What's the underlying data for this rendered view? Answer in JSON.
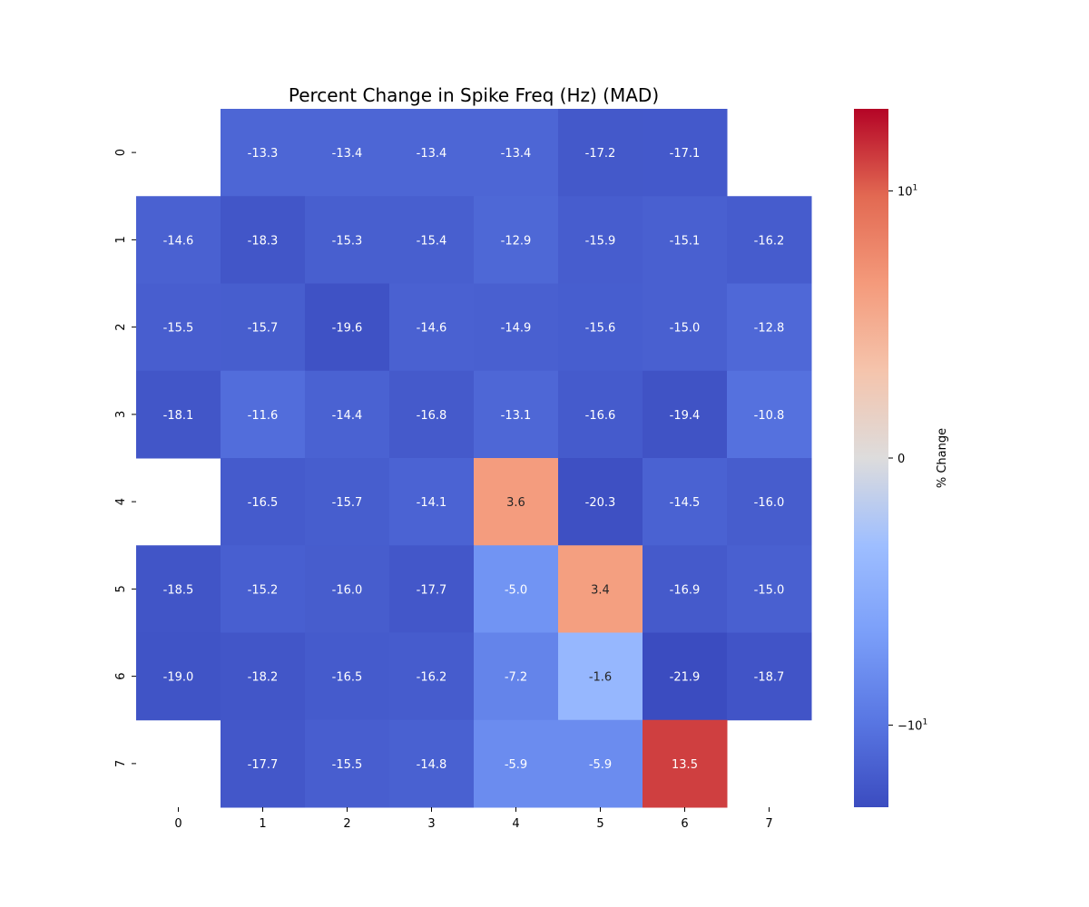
{
  "chart_data": {
    "type": "heatmap",
    "title": "Percent Change in Spike Freq (Hz) (MAD)",
    "x_ticks": [
      "0",
      "1",
      "2",
      "3",
      "4",
      "5",
      "6",
      "7"
    ],
    "y_ticks": [
      "0",
      "1",
      "2",
      "3",
      "4",
      "5",
      "6",
      "7"
    ],
    "values": [
      [
        null,
        -13.3,
        -13.4,
        -13.4,
        -13.4,
        -17.2,
        -17.1,
        null
      ],
      [
        -14.6,
        -18.3,
        -15.3,
        -15.4,
        -12.9,
        -15.9,
        -15.1,
        -16.2
      ],
      [
        -15.5,
        -15.7,
        -19.6,
        -14.6,
        -14.9,
        -15.6,
        -15.0,
        -12.8
      ],
      [
        -18.1,
        -11.6,
        -14.4,
        -16.8,
        -13.1,
        -16.6,
        -19.4,
        -10.8
      ],
      [
        null,
        -16.5,
        -15.7,
        -14.1,
        3.6,
        -20.3,
        -14.5,
        -16.0
      ],
      [
        -18.5,
        -15.2,
        -16.0,
        -17.7,
        -5.0,
        3.4,
        -16.9,
        -15.0
      ],
      [
        -19.0,
        -18.2,
        -16.5,
        -16.2,
        -7.2,
        -1.6,
        -21.9,
        -18.7
      ],
      [
        null,
        -17.7,
        -15.5,
        -14.8,
        -5.9,
        -5.9,
        13.5,
        null
      ]
    ],
    "colormap": "coolwarm",
    "color_scale": "symlog",
    "vlim": [
      -22,
      22
    ],
    "colorbar": {
      "label": "% Change",
      "ticks": [
        {
          "value": 10,
          "label": "10",
          "sup": "1"
        },
        {
          "value": 0,
          "label": "0",
          "sup": ""
        },
        {
          "value": -10,
          "label": "−10",
          "sup": "1"
        }
      ]
    },
    "cmap_colors": {
      "low": "#3b4cc0",
      "mid": "#dddddd",
      "high": "#b40426"
    }
  }
}
